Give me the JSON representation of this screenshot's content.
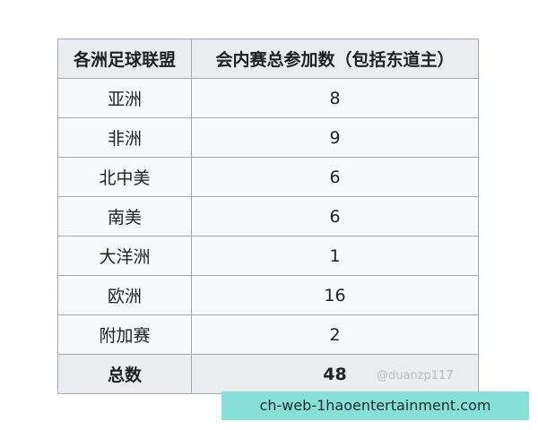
{
  "table": {
    "headers": [
      "各洲足球联盟",
      "会内赛总参加数（包括东道主）"
    ],
    "rows": [
      {
        "confederation": "亚洲",
        "count": "8"
      },
      {
        "confederation": "非洲",
        "count": "9"
      },
      {
        "confederation": "北中美",
        "count": "6"
      },
      {
        "confederation": "南美",
        "count": "6"
      },
      {
        "confederation": "大洋洲",
        "count": "1"
      },
      {
        "confederation": "欧洲",
        "count": "16"
      },
      {
        "confederation": "附加赛",
        "count": "2"
      }
    ],
    "total": {
      "label": "总数",
      "count": "48"
    }
  },
  "watermark": "@duanzp117",
  "banner": "ch-web-1haoentertainment.com"
}
